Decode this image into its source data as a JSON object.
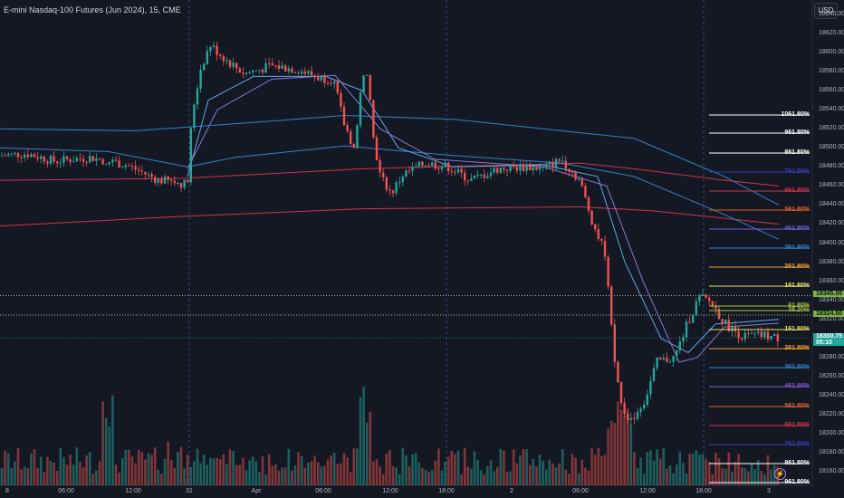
{
  "header": {
    "title": "E-mini Nasdaq-100 Futures (Jun 2024), 15, CME",
    "currency": "USD"
  },
  "price_axis": {
    "ticks": [
      "18640.00",
      "18620.00",
      "18600.00",
      "18580.00",
      "18560.00",
      "18540.00",
      "18520.00",
      "18500.00",
      "18480.00",
      "18460.00",
      "18440.00",
      "18420.00",
      "18400.00",
      "18380.00",
      "18360.00",
      "18340.00",
      "18320.00",
      "18300.00",
      "18280.00",
      "18260.00",
      "18240.00",
      "18220.00",
      "18200.00",
      "18180.00",
      "18160.00"
    ]
  },
  "time_axis": {
    "ticks": [
      "8",
      "06:00",
      "12:00",
      "31",
      "Apr",
      "06:00",
      "12:00",
      "18:00",
      "2",
      "06:00",
      "12:00",
      "18:00",
      "3"
    ]
  },
  "price_tags": {
    "level_1": "18345.00",
    "level_2": "18324.50",
    "last_price": "18300.75",
    "countdown": "05:10"
  },
  "fib_upper": [
    "1061.80%",
    "961.80%",
    "861.80%",
    "761.80%",
    "661.80%",
    "561.80%",
    "461.80%",
    "361.80%",
    "261.80%",
    "161.80%",
    "61.80%",
    "38.20%"
  ],
  "fib_lower": [
    "161.80%",
    "261.80%",
    "361.80%",
    "461.80%",
    "561.80%",
    "661.80%",
    "761.80%",
    "861.80%",
    "961.80%"
  ],
  "colors": {
    "background": "#141823",
    "up_candle": "#26a69a",
    "down_candle": "#ef5350",
    "ma_blue": "#2f83d0",
    "ma_red": "#d0344a",
    "ma_purple": "#8a7ad4",
    "ma_light": "#5fa8e8",
    "last_price": "#26a69a",
    "level_tag": "#7fb346"
  },
  "icons": {
    "alert": "lightning-icon"
  }
}
